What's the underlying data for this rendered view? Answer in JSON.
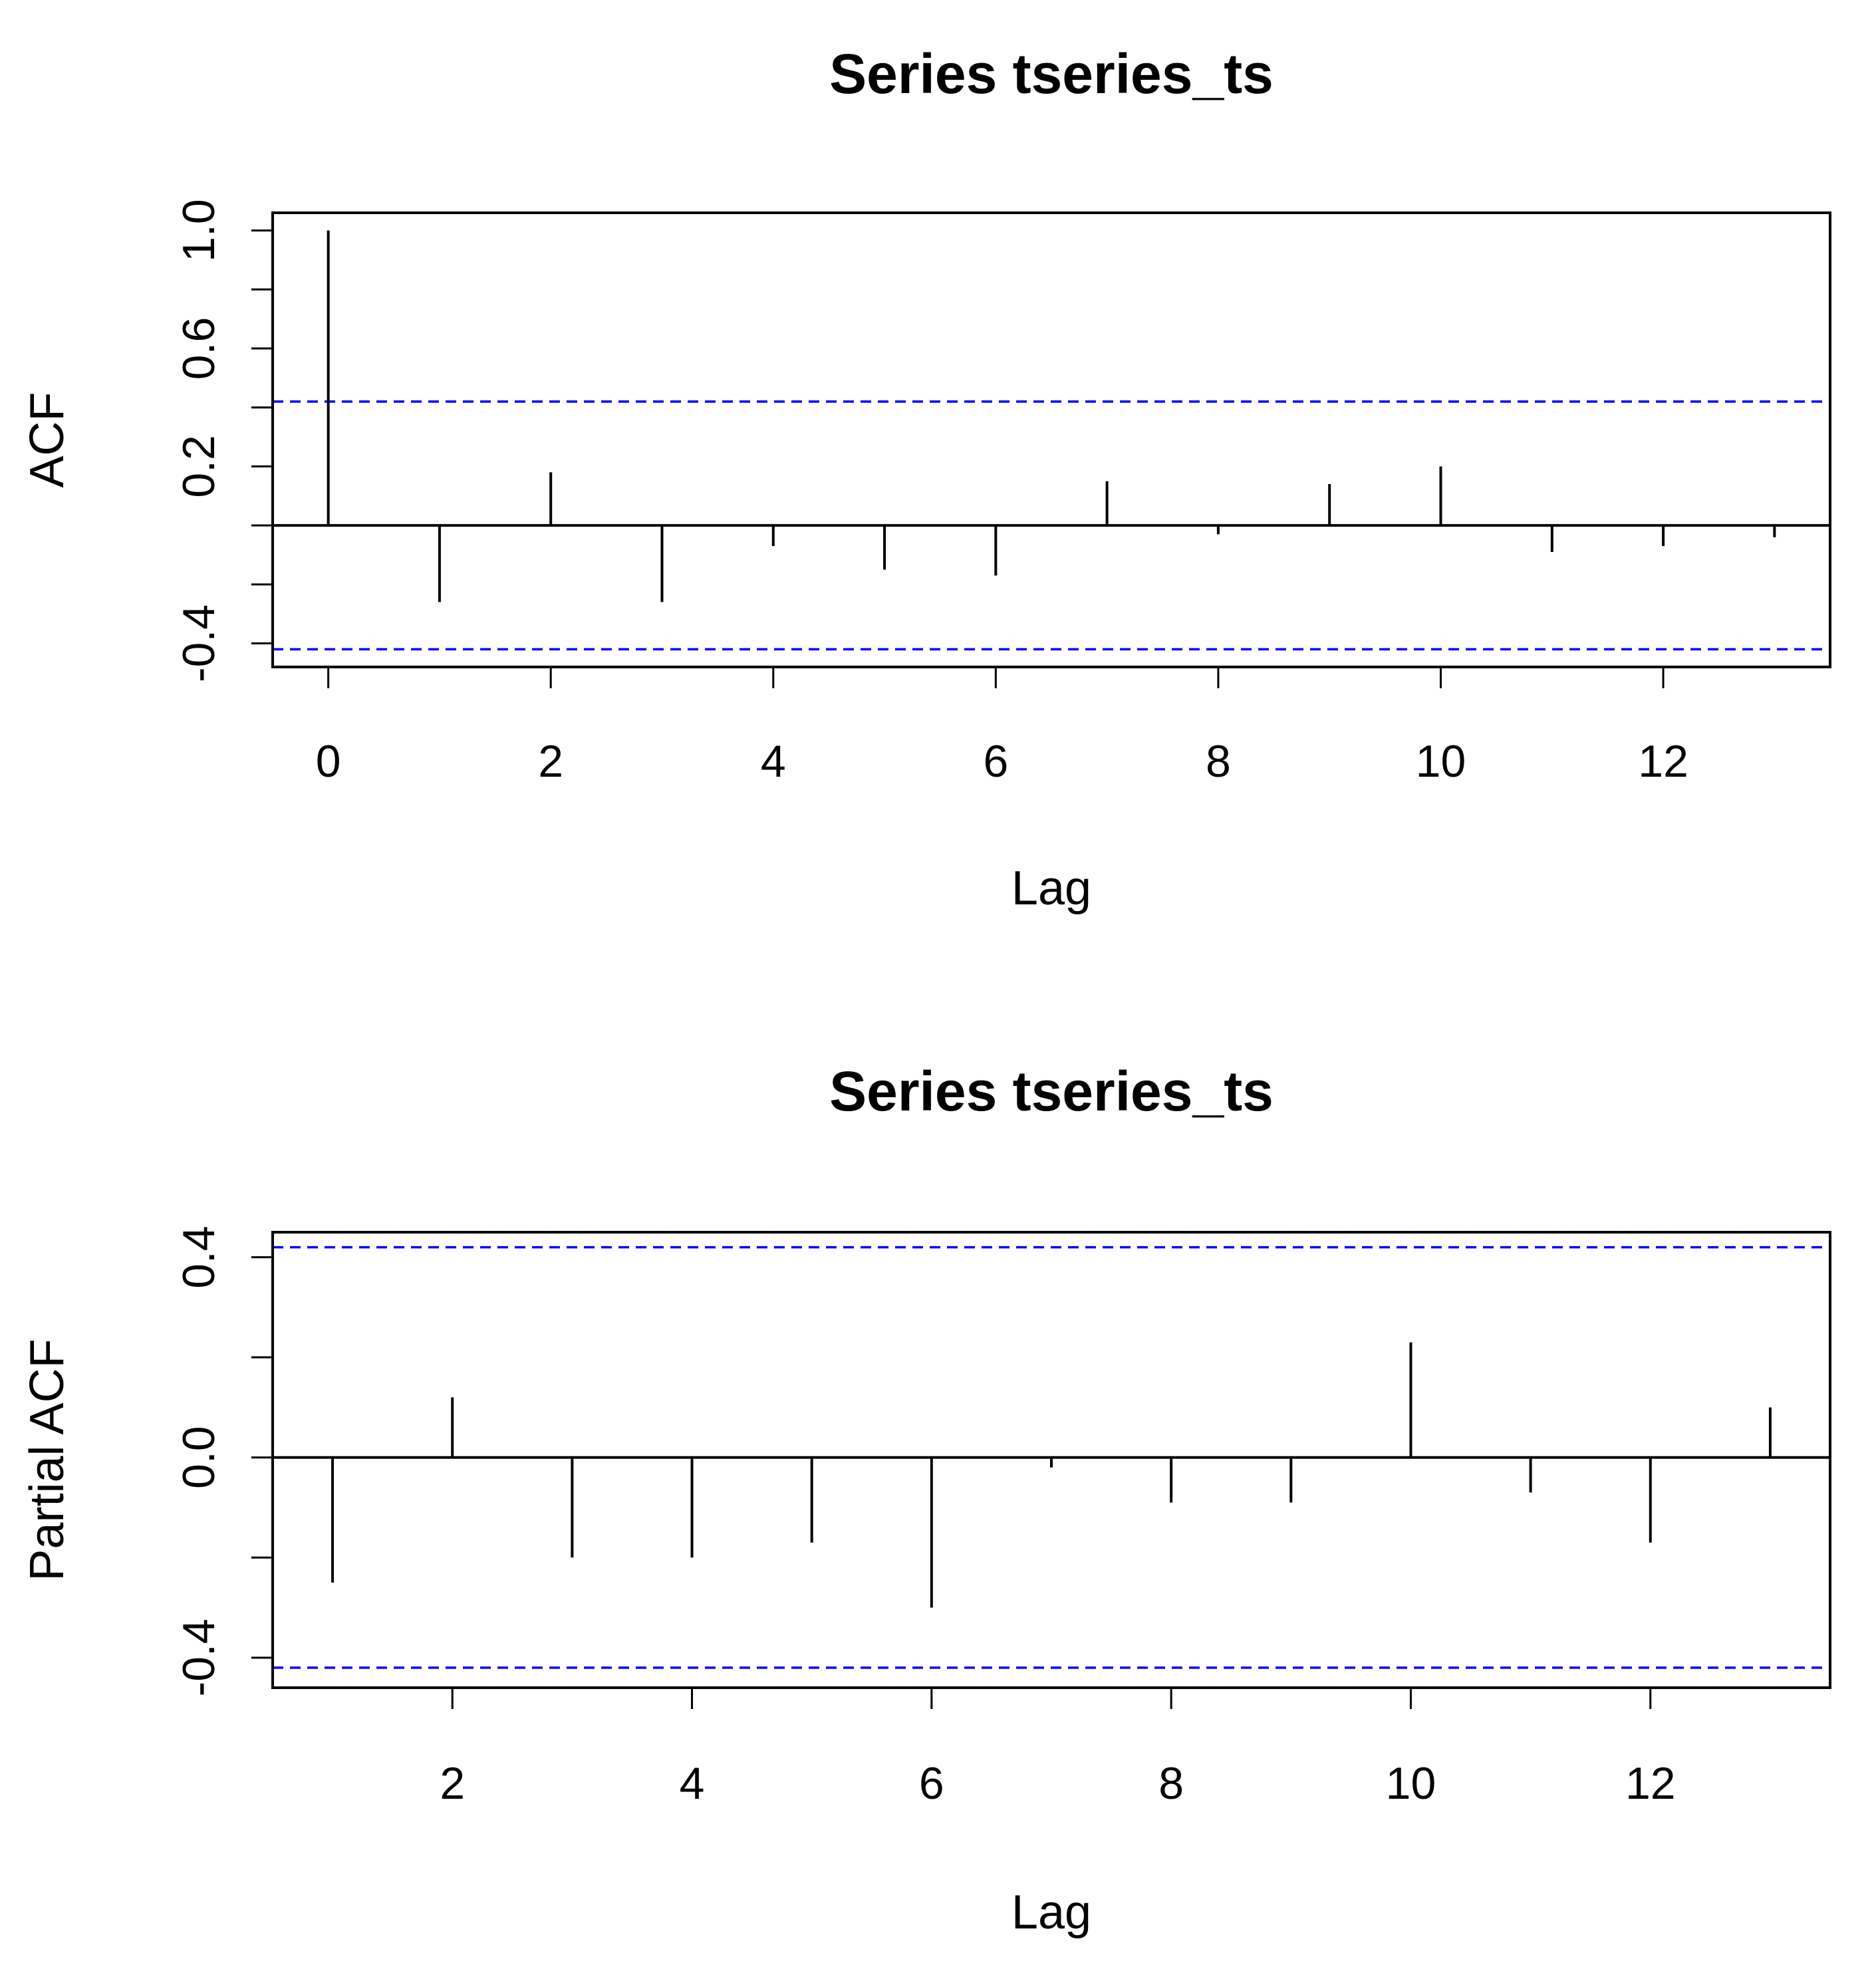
{
  "colors": {
    "ci_line": "#0000ff",
    "bars": "#000000"
  },
  "chart_data": [
    {
      "type": "bar",
      "title": "Series  tseries_ts",
      "xlabel": "Lag",
      "ylabel": "ACF",
      "x": [
        0,
        1,
        2,
        3,
        4,
        5,
        6,
        7,
        8,
        9,
        10,
        11,
        12,
        13
      ],
      "values": [
        1.0,
        -0.26,
        0.18,
        -0.26,
        -0.07,
        -0.15,
        -0.17,
        0.15,
        -0.03,
        0.14,
        0.2,
        -0.09,
        -0.07,
        -0.04
      ],
      "xlim": [
        -0.5,
        13.5
      ],
      "ylim": [
        -0.48,
        1.06
      ],
      "xticks": [
        0,
        2,
        4,
        6,
        8,
        10,
        12
      ],
      "xtick_labels": [
        "0",
        "2",
        "4",
        "6",
        "8",
        "10",
        "12"
      ],
      "yticks": [
        -0.4,
        -0.2,
        0.0,
        0.2,
        0.4,
        0.6,
        0.8,
        1.0
      ],
      "ytick_labels": [
        "-0.4",
        "",
        "",
        "0.2",
        "",
        "0.6",
        "",
        "1.0"
      ],
      "ci": [
        0.42,
        -0.42
      ]
    },
    {
      "type": "bar",
      "title": "Series  tseries_ts",
      "xlabel": "Lag",
      "ylabel": "Partial ACF",
      "x": [
        1,
        2,
        3,
        4,
        5,
        6,
        7,
        8,
        9,
        10,
        11,
        12,
        13
      ],
      "values": [
        -0.25,
        0.12,
        -0.2,
        -0.2,
        -0.17,
        -0.3,
        -0.02,
        -0.09,
        -0.09,
        0.23,
        -0.07,
        -0.17,
        0.1
      ],
      "xlim": [
        0.5,
        13.5
      ],
      "ylim": [
        -0.46,
        0.45
      ],
      "xticks": [
        2,
        4,
        6,
        8,
        10,
        12
      ],
      "xtick_labels": [
        "2",
        "4",
        "6",
        "8",
        "10",
        "12"
      ],
      "yticks": [
        -0.4,
        -0.2,
        0.0,
        0.2,
        0.4
      ],
      "ytick_labels": [
        "-0.4",
        "",
        "0.0",
        "",
        "0.4"
      ],
      "ci": [
        0.42,
        -0.42
      ]
    }
  ]
}
